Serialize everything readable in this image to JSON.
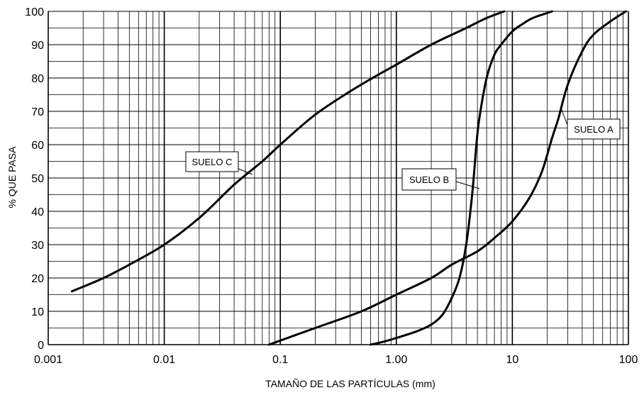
{
  "chart_data": {
    "type": "line",
    "xscale": "log",
    "xlim": [
      0.001,
      100
    ],
    "ylim": [
      0,
      100
    ],
    "xlabel": "TAMAÑO DE LAS PARTÍCULAS (mm)",
    "ylabel": "% QUE PASA",
    "grid": true,
    "x_ticks": [
      {
        "value": 0.001,
        "label": "0.001"
      },
      {
        "value": 0.01,
        "label": "0.01"
      },
      {
        "value": 0.1,
        "label": "0.1"
      },
      {
        "value": 1,
        "label": "1.00"
      },
      {
        "value": 10,
        "label": "10"
      },
      {
        "value": 100,
        "label": "100"
      }
    ],
    "y_ticks": [
      0,
      10,
      20,
      30,
      40,
      50,
      60,
      70,
      80,
      90,
      100
    ],
    "series": [
      {
        "name": "SUELO C",
        "color": "#000000",
        "points": [
          [
            0.0016,
            16
          ],
          [
            0.003,
            20
          ],
          [
            0.005,
            24
          ],
          [
            0.01,
            30
          ],
          [
            0.02,
            38
          ],
          [
            0.04,
            48
          ],
          [
            0.07,
            55
          ],
          [
            0.1,
            60
          ],
          [
            0.2,
            69
          ],
          [
            0.4,
            76
          ],
          [
            0.7,
            81
          ],
          [
            1.0,
            84
          ],
          [
            2.0,
            90
          ],
          [
            4.0,
            95
          ],
          [
            6.0,
            98
          ],
          [
            8.5,
            100
          ]
        ]
      },
      {
        "name": "SUELO B",
        "color": "#000000",
        "points": [
          [
            0.6,
            0
          ],
          [
            0.8,
            1
          ],
          [
            1.0,
            2
          ],
          [
            1.5,
            4
          ],
          [
            2.0,
            6
          ],
          [
            2.5,
            9
          ],
          [
            3.0,
            14
          ],
          [
            3.5,
            20
          ],
          [
            4.0,
            30
          ],
          [
            4.5,
            45
          ],
          [
            4.9,
            60
          ],
          [
            5.2,
            68
          ],
          [
            6.0,
            80
          ],
          [
            7.0,
            87
          ],
          [
            8.0,
            90
          ],
          [
            10.0,
            94
          ],
          [
            12.0,
            96
          ],
          [
            15.0,
            98
          ],
          [
            22.0,
            100
          ]
        ]
      },
      {
        "name": "SUELO A",
        "color": "#000000",
        "points": [
          [
            0.08,
            0
          ],
          [
            0.2,
            5
          ],
          [
            0.5,
            10
          ],
          [
            1.0,
            15
          ],
          [
            2.0,
            20
          ],
          [
            3.0,
            24
          ],
          [
            5.0,
            28
          ],
          [
            7.0,
            32
          ],
          [
            10.0,
            37
          ],
          [
            14.0,
            44
          ],
          [
            18.0,
            52
          ],
          [
            22.0,
            62
          ],
          [
            25.0,
            68
          ],
          [
            30.0,
            78
          ],
          [
            40.0,
            88
          ],
          [
            50.0,
            93
          ],
          [
            70.0,
            97
          ],
          [
            95.0,
            100
          ]
        ]
      }
    ],
    "annotations": [
      {
        "text": "SUELO C",
        "series": "SUELO C"
      },
      {
        "text": "SUELO B",
        "series": "SUELO B"
      },
      {
        "text": "SUELO A",
        "series": "SUELO A"
      }
    ]
  }
}
